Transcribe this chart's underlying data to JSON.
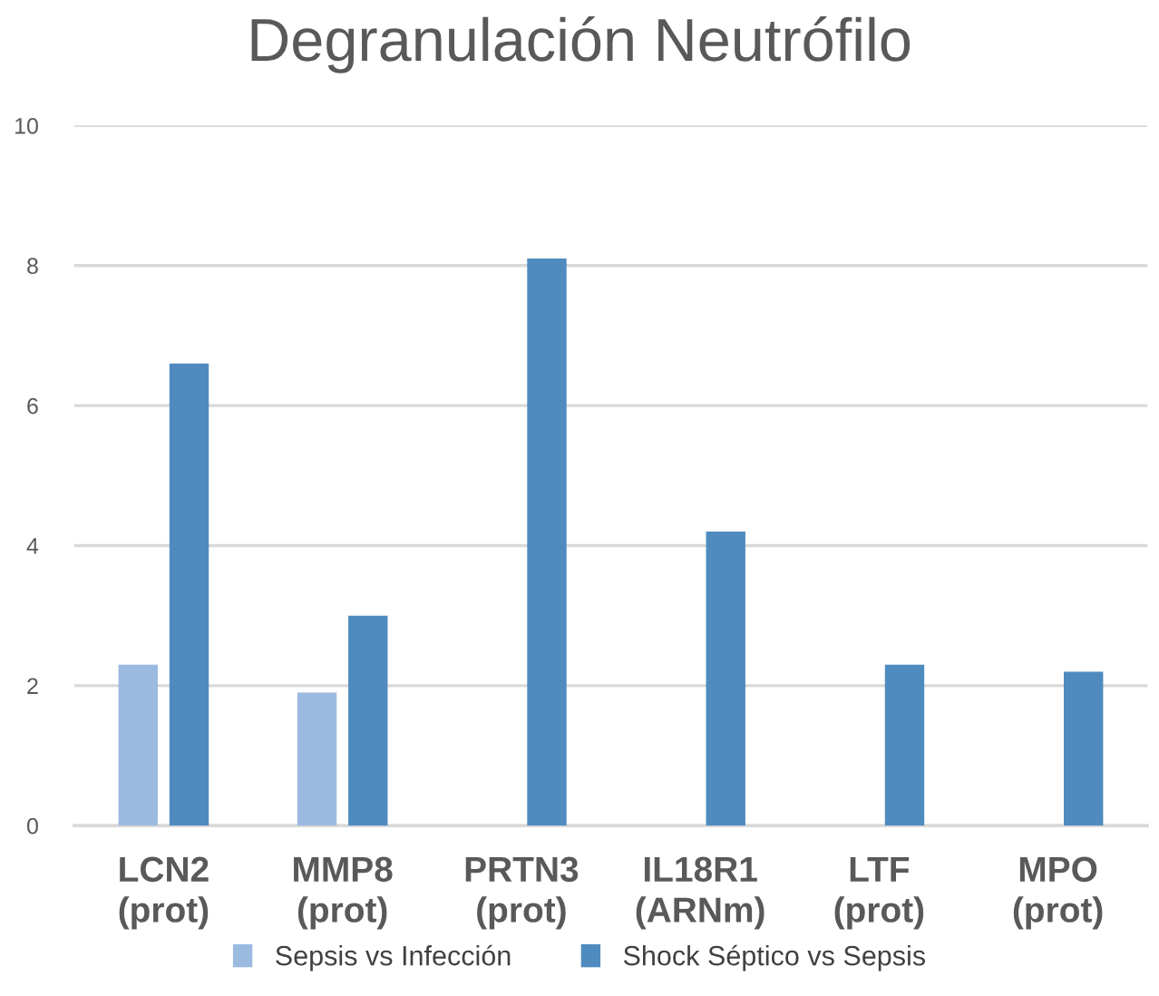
{
  "chart_data": {
    "type": "bar",
    "title": "Degranulación Neutrófilo",
    "categories": [
      "LCN2\n(prot)",
      "MMP8\n(prot)",
      "PRTN3\n(prot)",
      "IL18R1\n(ARNm)",
      "LTF\n(prot)",
      "MPO\n(prot)"
    ],
    "series": [
      {
        "name": "Sepsis vs Infección",
        "color": "#9bbae0",
        "values": [
          2.3,
          1.9,
          null,
          null,
          null,
          null
        ]
      },
      {
        "name": "Shock Séptico vs Sepsis",
        "color": "#4f8bbf",
        "values": [
          6.6,
          3.0,
          8.1,
          4.2,
          2.3,
          2.2
        ]
      }
    ],
    "ylim": [
      0,
      10
    ],
    "yticks": [
      0,
      2,
      4,
      6,
      8,
      10
    ],
    "grid": "y",
    "legend": "bottom"
  }
}
